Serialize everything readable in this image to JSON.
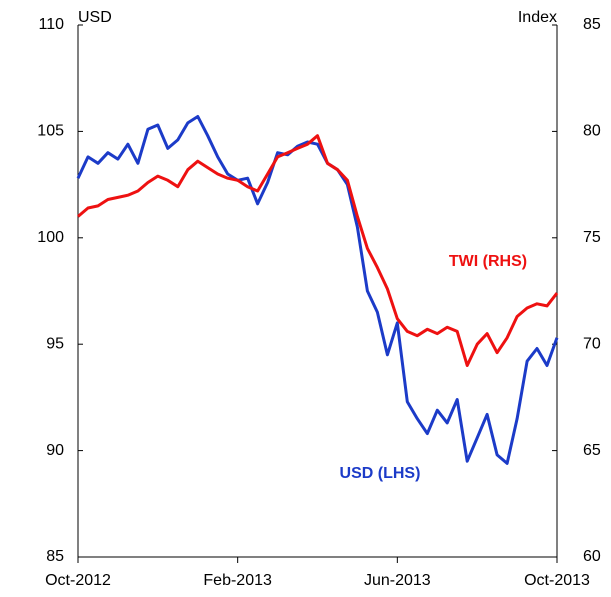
{
  "chart_data": {
    "type": "line",
    "y_label": "USD",
    "y2_label": "Index",
    "categories": [
      "Oct-2012",
      null,
      null,
      null,
      null,
      null,
      null,
      null,
      null,
      null,
      null,
      null,
      null,
      null,
      null,
      null,
      "Feb-2013",
      null,
      null,
      null,
      null,
      null,
      null,
      null,
      null,
      null,
      null,
      null,
      null,
      null,
      null,
      null,
      "Jun-2013",
      null,
      null,
      null,
      null,
      null,
      null,
      null,
      null,
      null,
      null,
      null,
      null,
      null,
      null,
      null,
      "Oct-2013"
    ],
    "ylim": [
      85,
      110
    ],
    "yticks": [
      85,
      90,
      95,
      100,
      105,
      110
    ],
    "y2lim": [
      60,
      85
    ],
    "y2ticks": [
      60,
      65,
      70,
      75,
      80,
      85
    ],
    "series": [
      {
        "name": "USD (LHS)",
        "color": "#1c3bc8",
        "axis": "y",
        "values": [
          102.8,
          103.8,
          103.5,
          104.0,
          103.7,
          104.4,
          103.5,
          105.1,
          105.3,
          104.2,
          104.6,
          105.4,
          105.7,
          104.8,
          103.8,
          103.0,
          102.7,
          102.8,
          101.6,
          102.6,
          104.0,
          103.9,
          104.3,
          104.5,
          104.4,
          103.5,
          103.2,
          102.5,
          100.5,
          97.5,
          96.5,
          94.5,
          96.0,
          92.3,
          91.5,
          90.8,
          91.9,
          91.3,
          92.4,
          89.5,
          90.6,
          91.7,
          89.8,
          89.4,
          91.5,
          94.2,
          94.8,
          94.0,
          95.3
        ]
      },
      {
        "name": "TWI (RHS)",
        "color": "#ee1111",
        "axis": "y2",
        "values": [
          76.0,
          76.4,
          76.5,
          76.8,
          76.9,
          77.0,
          77.2,
          77.6,
          77.9,
          77.7,
          77.4,
          78.2,
          78.6,
          78.3,
          78.0,
          77.8,
          77.7,
          77.4,
          77.2,
          78.0,
          78.8,
          79.0,
          79.2,
          79.4,
          79.8,
          78.5,
          78.2,
          77.7,
          76.0,
          74.5,
          73.6,
          72.6,
          71.2,
          70.6,
          70.4,
          70.7,
          70.5,
          70.8,
          70.6,
          69.0,
          70.0,
          70.5,
          69.6,
          70.3,
          71.3,
          71.7,
          71.9,
          71.8,
          72.4
        ]
      }
    ]
  }
}
